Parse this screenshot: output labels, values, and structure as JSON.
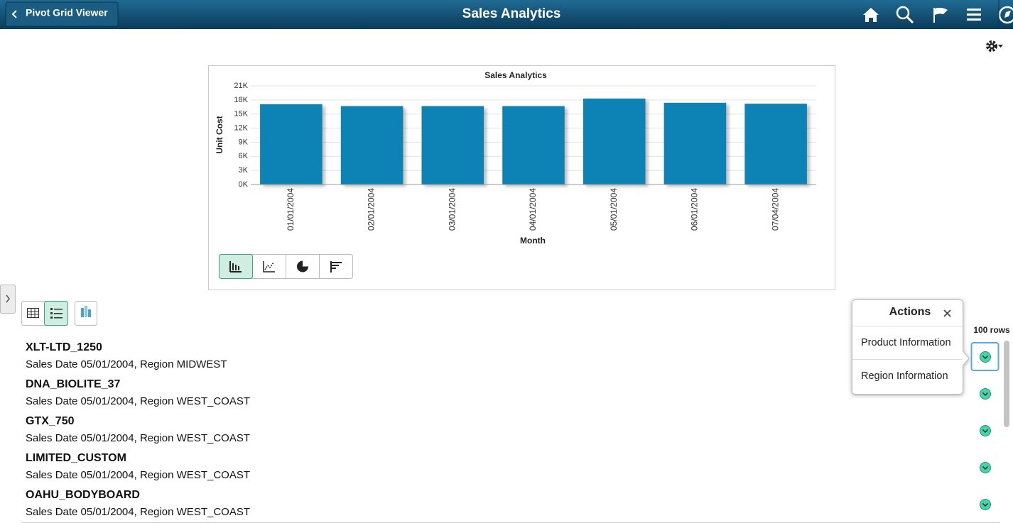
{
  "header": {
    "back_button": "Pivot Grid Viewer",
    "title": "Sales Analytics"
  },
  "chart_data": {
    "type": "bar",
    "title": "Sales Analytics",
    "x_label": "Month",
    "y_label": "Unit Cost",
    "categories": [
      "01/01/2004",
      "02/01/2004",
      "03/01/2004",
      "04/01/2004",
      "05/01/2004",
      "06/01/2004",
      "07/04/2004"
    ],
    "values": [
      17100,
      16700,
      16700,
      16700,
      18300,
      17400,
      17200
    ],
    "color": "#0a82b4",
    "ylim": [
      0,
      21000
    ],
    "yticks": [
      {
        "value": 0,
        "label": "0K"
      },
      {
        "value": 3000,
        "label": "3K"
      },
      {
        "value": 6000,
        "label": "6K"
      },
      {
        "value": 9000,
        "label": "9K"
      },
      {
        "value": 12000,
        "label": "12K"
      },
      {
        "value": 15000,
        "label": "15K"
      },
      {
        "value": 18000,
        "label": "18K"
      },
      {
        "value": 21000,
        "label": "21K"
      }
    ],
    "grid": true
  },
  "list": {
    "row_count": "100 rows",
    "rows": [
      {
        "title": "XLT-LTD_1250",
        "subtitle": "Sales Date 05/01/2004, Region MIDWEST"
      },
      {
        "title": "DNA_BIOLITE_37",
        "subtitle": "Sales Date 05/01/2004, Region WEST_COAST"
      },
      {
        "title": "GTX_750",
        "subtitle": "Sales Date 05/01/2004, Region WEST_COAST"
      },
      {
        "title": "LIMITED_CUSTOM",
        "subtitle": "Sales Date 05/01/2004, Region WEST_COAST"
      },
      {
        "title": "OAHU_BODYBOARD",
        "subtitle": "Sales Date 05/01/2004, Region WEST_COAST"
      }
    ]
  },
  "actions": {
    "title": "Actions",
    "items": [
      "Product Information",
      "Region Information"
    ]
  }
}
